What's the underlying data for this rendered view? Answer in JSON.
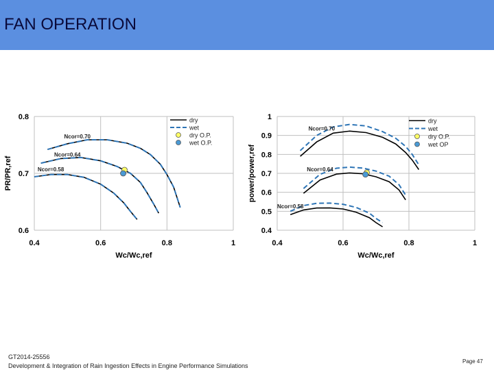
{
  "header": {
    "title": "FAN OPERATION",
    "color": "#5b8fe0"
  },
  "footer": {
    "paper_ref": "GT2014-25556",
    "description": "Development & Integration of Rain Ingestion Effects in Engine Performance Simulations",
    "page": "Page 47"
  },
  "chart_data": [
    {
      "type": "line",
      "xlabel": "Wc/Wc,ref",
      "ylabel": "PR/PR,ref",
      "xlim": [
        0.4,
        1
      ],
      "ylim": [
        0.6,
        0.8
      ],
      "xticks": [
        "0.4",
        "0.6",
        "0.8",
        "1"
      ],
      "yticks": [
        "0.6",
        "0.7",
        "0.8"
      ],
      "grid": true,
      "legend_position": "top-right",
      "legend": [
        "dry",
        "wet",
        "dry O.P.",
        "wet O.P."
      ],
      "series": [
        {
          "name": "dry",
          "line": "Ncor=0.70",
          "x": [
            0.44,
            0.5,
            0.56,
            0.62,
            0.68,
            0.72,
            0.75,
            0.78,
            0.8,
            0.82,
            0.84
          ],
          "y": [
            0.742,
            0.752,
            0.759,
            0.759,
            0.753,
            0.744,
            0.733,
            0.716,
            0.698,
            0.676,
            0.64
          ]
        },
        {
          "name": "wet",
          "line": "Ncor=0.70",
          "x": [
            0.44,
            0.5,
            0.56,
            0.62,
            0.68,
            0.72,
            0.75,
            0.78,
            0.8,
            0.82,
            0.84
          ],
          "y": [
            0.742,
            0.752,
            0.759,
            0.759,
            0.753,
            0.744,
            0.733,
            0.716,
            0.698,
            0.676,
            0.64
          ]
        },
        {
          "name": "dry",
          "line": "Ncor=0.64",
          "x": [
            0.42,
            0.48,
            0.54,
            0.6,
            0.65,
            0.69,
            0.72,
            0.74,
            0.76,
            0.775
          ],
          "y": [
            0.718,
            0.726,
            0.728,
            0.722,
            0.712,
            0.7,
            0.684,
            0.666,
            0.646,
            0.63
          ]
        },
        {
          "name": "wet",
          "line": "Ncor=0.64",
          "x": [
            0.42,
            0.48,
            0.54,
            0.6,
            0.65,
            0.69,
            0.72,
            0.74,
            0.76,
            0.775
          ],
          "y": [
            0.718,
            0.726,
            0.728,
            0.722,
            0.712,
            0.7,
            0.684,
            0.666,
            0.646,
            0.63
          ]
        },
        {
          "name": "dry",
          "line": "Ncor=0.58",
          "x": [
            0.4,
            0.45,
            0.5,
            0.55,
            0.6,
            0.64,
            0.67,
            0.69,
            0.71
          ],
          "y": [
            0.694,
            0.698,
            0.698,
            0.693,
            0.681,
            0.665,
            0.648,
            0.633,
            0.619
          ]
        },
        {
          "name": "wet",
          "line": "Ncor=0.58",
          "x": [
            0.4,
            0.45,
            0.5,
            0.55,
            0.6,
            0.64,
            0.67,
            0.69,
            0.71
          ],
          "y": [
            0.694,
            0.698,
            0.698,
            0.693,
            0.681,
            0.665,
            0.648,
            0.633,
            0.619
          ]
        },
        {
          "name": "dry O.P.",
          "type": "scatter",
          "x": [
            0.672
          ],
          "y": [
            0.706
          ]
        },
        {
          "name": "wet O.P.",
          "type": "scatter",
          "x": [
            0.668
          ],
          "y": [
            0.7
          ]
        }
      ],
      "annotations": [
        {
          "text": "Ncor=0.70",
          "x": 0.49,
          "y": 0.758
        },
        {
          "text": "Ncor=0.64",
          "x": 0.46,
          "y": 0.726
        },
        {
          "text": "Ncor=0.58",
          "x": 0.41,
          "y": 0.7
        }
      ]
    },
    {
      "type": "line",
      "xlabel": "Wc/Wc,ref",
      "ylabel": "power/power,ref",
      "xlim": [
        0.4,
        1
      ],
      "ylim": [
        0.4,
        1
      ],
      "xticks": [
        "0.4",
        "0.6",
        "0.8",
        "1"
      ],
      "yticks": [
        "0.4",
        "0.5",
        "0.6",
        "0.7",
        "0.8",
        "0.9",
        "1"
      ],
      "grid": true,
      "legend_position": "top-right",
      "legend": [
        "dry",
        "wet",
        "dry O.P.",
        "wet OP"
      ],
      "series": [
        {
          "name": "dry",
          "line": "Ncor=0.70",
          "x": [
            0.47,
            0.52,
            0.57,
            0.62,
            0.67,
            0.72,
            0.76,
            0.79,
            0.81,
            0.83
          ],
          "y": [
            0.79,
            0.866,
            0.912,
            0.923,
            0.915,
            0.89,
            0.855,
            0.81,
            0.77,
            0.72
          ]
        },
        {
          "name": "wet",
          "line": "Ncor=0.70",
          "x": [
            0.47,
            0.52,
            0.57,
            0.62,
            0.67,
            0.72,
            0.76,
            0.79,
            0.81,
            0.83
          ],
          "y": [
            0.82,
            0.9,
            0.945,
            0.958,
            0.95,
            0.92,
            0.885,
            0.842,
            0.8,
            0.745
          ]
        },
        {
          "name": "dry",
          "line": "Ncor=0.64",
          "x": [
            0.48,
            0.53,
            0.58,
            0.62,
            0.66,
            0.7,
            0.74,
            0.77,
            0.79
          ],
          "y": [
            0.595,
            0.665,
            0.696,
            0.702,
            0.698,
            0.682,
            0.656,
            0.612,
            0.56
          ]
        },
        {
          "name": "wet",
          "line": "Ncor=0.64",
          "x": [
            0.48,
            0.53,
            0.58,
            0.62,
            0.66,
            0.7,
            0.74,
            0.77,
            0.79
          ],
          "y": [
            0.62,
            0.695,
            0.727,
            0.733,
            0.728,
            0.712,
            0.685,
            0.64,
            0.585
          ]
        },
        {
          "name": "dry",
          "line": "Ncor=0.58",
          "x": [
            0.44,
            0.48,
            0.52,
            0.56,
            0.6,
            0.64,
            0.68,
            0.7,
            0.72
          ],
          "y": [
            0.482,
            0.507,
            0.517,
            0.518,
            0.512,
            0.495,
            0.466,
            0.44,
            0.418
          ]
        },
        {
          "name": "wet",
          "line": "Ncor=0.58",
          "x": [
            0.44,
            0.48,
            0.52,
            0.56,
            0.6,
            0.64,
            0.68,
            0.7,
            0.72
          ],
          "y": [
            0.5,
            0.53,
            0.542,
            0.543,
            0.537,
            0.52,
            0.49,
            0.462,
            0.44
          ]
        },
        {
          "name": "dry O.P.",
          "type": "scatter",
          "x": [
            0.672
          ],
          "y": [
            0.704
          ]
        },
        {
          "name": "wet O.P.",
          "type": "scatter",
          "x": [
            0.668
          ],
          "y": [
            0.694
          ]
        }
      ],
      "annotations": [
        {
          "text": "Ncor=0.70",
          "x": 0.495,
          "y": 0.915
        },
        {
          "text": "Ncor=0.64",
          "x": 0.49,
          "y": 0.7
        },
        {
          "text": "Ncor=0.58",
          "x": 0.4,
          "y": 0.505
        }
      ]
    }
  ],
  "styles": {
    "dry_color": "#000000",
    "wet_color": "#2e75b6",
    "dry_op_color": "#ffff66",
    "wet_op_color": "#4a9ad4",
    "grid_color": "#bfbfbf"
  }
}
